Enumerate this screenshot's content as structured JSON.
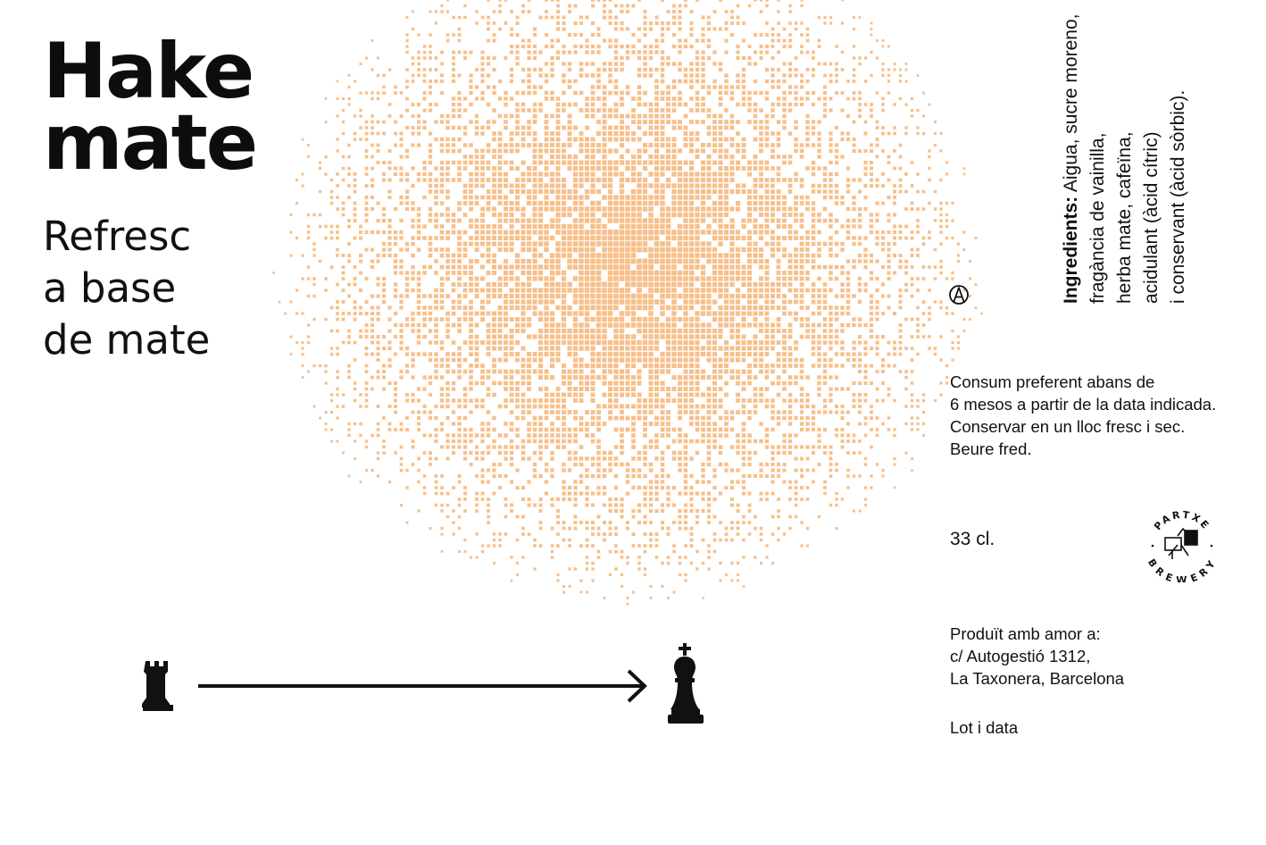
{
  "colors": {
    "halftone": "#f7bf8a",
    "ink": "#111111"
  },
  "title": [
    "Hake",
    "mate"
  ],
  "subtitle": [
    "Refresc",
    "a base",
    "de mate"
  ],
  "ingredients": {
    "label": "Ingredients:",
    "lines": [
      " Aigua, sucre moreno,",
      "fragància de vainilla,",
      "herba mate, cafeïna,",
      "acidulant (àcid cítric)",
      "i conservant (àcid sòrbic)."
    ]
  },
  "storage": [
    "Consum preferent abans de",
    "6 mesos a partir de la data indicada.",
    "Conservar en un lloc fresc i sec.",
    "Beure fred."
  ],
  "volume": "33 cl.",
  "producer": [
    "Produït amb amor a:",
    "c/ Autogestió 1312,",
    "La Taxonera, Barcelona"
  ],
  "lot": "Lot i data",
  "logo": {
    "top": "PARTXE",
    "bottom": "BREWERY"
  },
  "icons": {
    "anarchy": "anarchy-symbol-icon",
    "rook": "chess-rook-icon",
    "king": "chess-king-icon",
    "arrow": "arrow-right-icon"
  }
}
